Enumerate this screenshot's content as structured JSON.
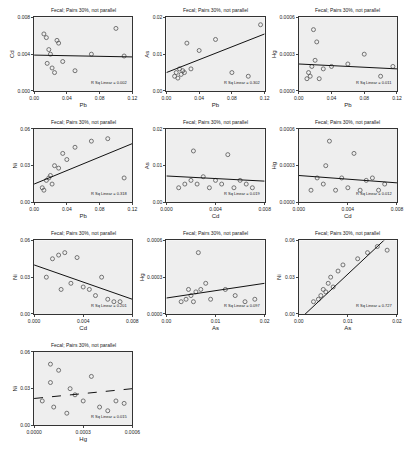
{
  "chart_data": [
    {
      "type": "scatter",
      "title": "Fecal; Pairs 30%, not parallel",
      "x_label": "Pb",
      "y_label": "Cd",
      "marker": "open circle",
      "color": "#555555",
      "line_style": "solid",
      "x": [
        0.012,
        0.015,
        0.018,
        0.02,
        0.022,
        0.025,
        0.028,
        0.03,
        0.035,
        0.05,
        0.07,
        0.1,
        0.11,
        0.016
      ],
      "y": [
        0.0062,
        0.0058,
        0.0045,
        0.004,
        0.0025,
        0.002,
        0.0055,
        0.0052,
        0.0032,
        0.0022,
        0.004,
        0.0068,
        0.0038,
        0.003
      ],
      "fit": [
        0.0039,
        0.0037
      ],
      "annotation": "R Sq Linear = 0.002",
      "xlim": [
        0,
        0.12
      ],
      "xticks": [
        {
          "value": 0,
          "label": "0.00"
        },
        {
          "value": 0.04,
          "label": "0.04"
        },
        {
          "value": 0.08,
          "label": "0.08"
        },
        {
          "value": 0.12,
          "label": "0.12"
        }
      ],
      "ylim": [
        0,
        0.008
      ],
      "yticks": [
        {
          "value": 0,
          "label": "0.000"
        },
        {
          "value": 0.004,
          "label": "0.004"
        },
        {
          "value": 0.008,
          "label": "0.008"
        }
      ]
    },
    {
      "type": "scatter",
      "title": "Fecal; Pairs 30%, not parallel",
      "x_label": "Pb",
      "y_label": "As",
      "marker": "open circle",
      "color": "#555555",
      "line_style": "solid",
      "x": [
        0.01,
        0.012,
        0.014,
        0.016,
        0.018,
        0.02,
        0.022,
        0.025,
        0.03,
        0.04,
        0.06,
        0.08,
        0.1,
        0.115
      ],
      "y": [
        0.004,
        0.005,
        0.0035,
        0.006,
        0.0045,
        0.0055,
        0.005,
        0.013,
        0.006,
        0.011,
        0.014,
        0.005,
        0.004,
        0.018
      ],
      "fit": [
        0.005,
        0.0155
      ],
      "annotation": "R Sq Linear = 0.302",
      "xlim": [
        0,
        0.12
      ],
      "xticks": [
        {
          "value": 0,
          "label": "0.00"
        },
        {
          "value": 0.04,
          "label": "0.04"
        },
        {
          "value": 0.08,
          "label": "0.08"
        },
        {
          "value": 0.12,
          "label": "0.12"
        }
      ],
      "ylim": [
        0,
        0.02
      ],
      "yticks": [
        {
          "value": 0,
          "label": "0.00"
        },
        {
          "value": 0.01,
          "label": "0.01"
        },
        {
          "value": 0.02,
          "label": "0.02"
        }
      ]
    },
    {
      "type": "scatter",
      "title": "Fecal; Pairs 30%, not parallel",
      "x_label": "Pb",
      "y_label": "Hg",
      "marker": "open circle",
      "color": "#555555",
      "line_style": "solid",
      "x": [
        0.01,
        0.012,
        0.014,
        0.016,
        0.018,
        0.02,
        0.022,
        0.025,
        0.03,
        0.04,
        0.06,
        0.08,
        0.1,
        0.115
      ],
      "y": [
        0.0001,
        0.00015,
        0.00012,
        0.0002,
        0.0005,
        0.00025,
        0.0004,
        0.0001,
        0.00018,
        0.0002,
        0.00022,
        0.0003,
        0.00012,
        0.0002
      ],
      "fit": [
        0.00022,
        0.00018
      ],
      "annotation": "R Sq Linear = 0.011",
      "xlim": [
        0,
        0.12
      ],
      "xticks": [
        {
          "value": 0,
          "label": "0.00"
        },
        {
          "value": 0.04,
          "label": "0.04"
        },
        {
          "value": 0.08,
          "label": "0.08"
        },
        {
          "value": 0.12,
          "label": "0.12"
        }
      ],
      "ylim": [
        0,
        0.0006
      ],
      "yticks": [
        {
          "value": 0,
          "label": "0.0000"
        },
        {
          "value": 0.0003,
          "label": "0.0003"
        },
        {
          "value": 0.0006,
          "label": "0.0006"
        }
      ]
    },
    {
      "type": "scatter",
      "title": "Fecal; Pairs 30%, not parallel",
      "x_label": "Pb",
      "y_label": "Ni",
      "marker": "open circle",
      "color": "#555555",
      "line_style": "solid",
      "x": [
        0.01,
        0.012,
        0.015,
        0.018,
        0.02,
        0.022,
        0.025,
        0.03,
        0.035,
        0.04,
        0.05,
        0.07,
        0.09,
        0.11
      ],
      "y": [
        0.012,
        0.01,
        0.018,
        0.02,
        0.022,
        0.015,
        0.03,
        0.028,
        0.04,
        0.035,
        0.045,
        0.05,
        0.052,
        0.02
      ],
      "fit": [
        0.015,
        0.048
      ],
      "annotation": "R Sq Linear = 0.318",
      "xlim": [
        0,
        0.12
      ],
      "xticks": [
        {
          "value": 0,
          "label": "0.00"
        },
        {
          "value": 0.04,
          "label": "0.04"
        },
        {
          "value": 0.08,
          "label": "0.08"
        },
        {
          "value": 0.12,
          "label": "0.12"
        }
      ],
      "ylim": [
        0,
        0.06
      ],
      "yticks": [
        {
          "value": 0,
          "label": "0.00"
        },
        {
          "value": 0.03,
          "label": "0.03"
        },
        {
          "value": 0.06,
          "label": "0.06"
        }
      ]
    },
    {
      "type": "scatter",
      "title": "Fecal; Pairs 30%, not parallel",
      "x_label": "Cd",
      "y_label": "As",
      "marker": "open circle",
      "color": "#555555",
      "line_style": "solid",
      "x": [
        0.001,
        0.0015,
        0.002,
        0.0022,
        0.0025,
        0.003,
        0.0035,
        0.004,
        0.0045,
        0.005,
        0.0055,
        0.006,
        0.0065,
        0.007
      ],
      "y": [
        0.004,
        0.005,
        0.006,
        0.014,
        0.005,
        0.007,
        0.004,
        0.006,
        0.005,
        0.013,
        0.004,
        0.006,
        0.005,
        0.004
      ],
      "fit": [
        0.0072,
        0.0058
      ],
      "annotation": "R Sq Linear = 0.019",
      "xlim": [
        0,
        0.008
      ],
      "xticks": [
        {
          "value": 0,
          "label": "0.000"
        },
        {
          "value": 0.004,
          "label": "0.004"
        },
        {
          "value": 0.008,
          "label": "0.008"
        }
      ],
      "ylim": [
        0,
        0.02
      ],
      "yticks": [
        {
          "value": 0,
          "label": "0.00"
        },
        {
          "value": 0.01,
          "label": "0.01"
        },
        {
          "value": 0.02,
          "label": "0.02"
        }
      ]
    },
    {
      "type": "scatter",
      "title": "Fecal; Pairs 30%, not parallel",
      "x_label": "Cd",
      "y_label": "Hg",
      "marker": "open circle",
      "color": "#555555",
      "line_style": "solid",
      "x": [
        0.001,
        0.0015,
        0.002,
        0.0022,
        0.0025,
        0.003,
        0.0035,
        0.004,
        0.0045,
        0.005,
        0.0055,
        0.006,
        0.0065,
        0.007
      ],
      "y": [
        0.0001,
        0.0002,
        0.00015,
        0.0003,
        0.0005,
        0.0001,
        0.0002,
        0.00012,
        0.0004,
        0.0001,
        0.00018,
        0.0002,
        0.0001,
        0.00015
      ],
      "fit": [
        0.00022,
        0.00016
      ],
      "annotation": "R Sq Linear = 0.012",
      "xlim": [
        0,
        0.008
      ],
      "xticks": [
        {
          "value": 0,
          "label": "0.000"
        },
        {
          "value": 0.004,
          "label": "0.004"
        },
        {
          "value": 0.008,
          "label": "0.008"
        }
      ],
      "ylim": [
        0,
        0.0006
      ],
      "yticks": [
        {
          "value": 0,
          "label": "0.0000"
        },
        {
          "value": 0.0003,
          "label": "0.0003"
        },
        {
          "value": 0.0006,
          "label": "0.0006"
        }
      ]
    },
    {
      "type": "scatter",
      "title": "Fecal; Pairs 30%, not parallel",
      "x_label": "Cd",
      "y_label": "Ni",
      "marker": "open circle",
      "color": "#555555",
      "line_style": "solid",
      "x": [
        0.001,
        0.0015,
        0.002,
        0.0022,
        0.0025,
        0.003,
        0.0035,
        0.004,
        0.0045,
        0.005,
        0.0055,
        0.006,
        0.0065,
        0.007
      ],
      "y": [
        0.03,
        0.045,
        0.048,
        0.02,
        0.05,
        0.025,
        0.046,
        0.022,
        0.02,
        0.015,
        0.03,
        0.012,
        0.01,
        0.01
      ],
      "fit": [
        0.04,
        0.012
      ],
      "annotation": "R Sq Linear = 0.201",
      "xlim": [
        0,
        0.008
      ],
      "xticks": [
        {
          "value": 0,
          "label": "0.000"
        },
        {
          "value": 0.004,
          "label": "0.004"
        },
        {
          "value": 0.008,
          "label": "0.008"
        }
      ],
      "ylim": [
        0,
        0.06
      ],
      "yticks": [
        {
          "value": 0,
          "label": "0.00"
        },
        {
          "value": 0.03,
          "label": "0.03"
        },
        {
          "value": 0.06,
          "label": "0.06"
        }
      ]
    },
    {
      "type": "scatter",
      "title": "Fecal; Pairs 30%, not parallel",
      "x_label": "As",
      "y_label": "Hg",
      "marker": "open circle",
      "color": "#555555",
      "line_style": "solid",
      "x": [
        0.003,
        0.004,
        0.0045,
        0.005,
        0.0055,
        0.006,
        0.0065,
        0.007,
        0.008,
        0.009,
        0.012,
        0.014,
        0.016,
        0.018
      ],
      "y": [
        0.0001,
        0.00012,
        0.0002,
        0.00015,
        0.0001,
        0.00018,
        0.0005,
        0.0002,
        0.00025,
        0.00012,
        0.0002,
        0.00015,
        0.0001,
        0.00012
      ],
      "fit": [
        0.00013,
        0.00025
      ],
      "annotation": "R Sq Linear = 0.097",
      "xlim": [
        0,
        0.02
      ],
      "xticks": [
        {
          "value": 0,
          "label": "0.00"
        },
        {
          "value": 0.01,
          "label": "0.01"
        },
        {
          "value": 0.02,
          "label": "0.02"
        }
      ],
      "ylim": [
        0,
        0.0006
      ],
      "yticks": [
        {
          "value": 0,
          "label": "0.0000"
        },
        {
          "value": 0.0003,
          "label": "0.0003"
        },
        {
          "value": 0.0006,
          "label": "0.0006"
        }
      ]
    },
    {
      "type": "scatter",
      "title": "Fecal; Pairs 30%, not parallel",
      "x_label": "As",
      "y_label": "Ni",
      "marker": "open circle",
      "color": "#555555",
      "line_style": "solid",
      "x": [
        0.003,
        0.004,
        0.0045,
        0.005,
        0.0055,
        0.006,
        0.0065,
        0.007,
        0.008,
        0.009,
        0.012,
        0.014,
        0.016,
        0.018
      ],
      "y": [
        0.01,
        0.012,
        0.015,
        0.02,
        0.018,
        0.025,
        0.03,
        0.022,
        0.035,
        0.04,
        0.045,
        0.05,
        0.055,
        0.052
      ],
      "fit": [
        -0.005,
        0.07
      ],
      "annotation": "R Sq Linear = 0.727",
      "xlim": [
        0,
        0.02
      ],
      "xticks": [
        {
          "value": 0,
          "label": "0.00"
        },
        {
          "value": 0.01,
          "label": "0.01"
        },
        {
          "value": 0.02,
          "label": "0.02"
        }
      ],
      "ylim": [
        0,
        0.06
      ],
      "yticks": [
        {
          "value": 0,
          "label": "0.00"
        },
        {
          "value": 0.03,
          "label": "0.03"
        },
        {
          "value": 0.06,
          "label": "0.06"
        }
      ]
    },
    {
      "type": "scatter",
      "title": "Fecal; Pairs 30%, not parallel",
      "x_label": "Hg",
      "y_label": "Ni",
      "marker": "open circle",
      "color": "#555555",
      "line_style": "dashed",
      "x": [
        5e-05,
        0.0001,
        0.00012,
        0.00015,
        0.0002,
        0.00022,
        0.00025,
        0.0003,
        0.00035,
        0.0004,
        0.00045,
        0.0005,
        0.00055,
        0.0001
      ],
      "y": [
        0.02,
        0.035,
        0.015,
        0.045,
        0.01,
        0.03,
        0.025,
        0.02,
        0.04,
        0.015,
        0.012,
        0.02,
        0.018,
        0.05
      ],
      "fit": [
        0.022,
        0.03
      ],
      "annotation": "R Sq Linear = 0.015",
      "xlim": [
        0,
        0.0006
      ],
      "xticks": [
        {
          "value": 0,
          "label": "0.0000"
        },
        {
          "value": 0.0003,
          "label": "0.0003"
        },
        {
          "value": 0.0006,
          "label": "0.0006"
        }
      ],
      "ylim": [
        0,
        0.06
      ],
      "yticks": [
        {
          "value": 0,
          "label": "0.00"
        },
        {
          "value": 0.03,
          "label": "0.03"
        },
        {
          "value": 0.06,
          "label": "0.06"
        }
      ]
    }
  ]
}
